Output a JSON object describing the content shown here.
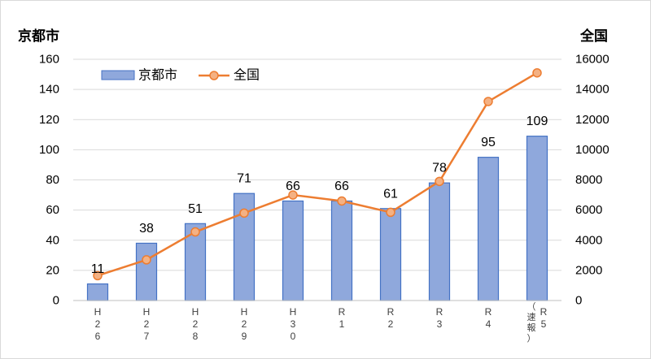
{
  "chart_data": {
    "type": "bar",
    "title": "",
    "y_left_label": "京都市",
    "y_right_label": "全国",
    "ylim_left": [
      0,
      160
    ],
    "ylim_right": [
      0,
      16000
    ],
    "y_left_ticks": [
      "0",
      "20",
      "40",
      "60",
      "80",
      "100",
      "120",
      "140",
      "160"
    ],
    "y_right_ticks": [
      "0",
      "2000",
      "4000",
      "6000",
      "8000",
      "10000",
      "12000",
      "14000",
      "16000"
    ],
    "categories": [
      {
        "main": [
          "H",
          "2",
          "6"
        ],
        "side": []
      },
      {
        "main": [
          "H",
          "2",
          "7"
        ],
        "side": []
      },
      {
        "main": [
          "H",
          "2",
          "8"
        ],
        "side": []
      },
      {
        "main": [
          "H",
          "2",
          "9"
        ],
        "side": []
      },
      {
        "main": [
          "H",
          "3",
          "0"
        ],
        "side": []
      },
      {
        "main": [
          "R",
          "1"
        ],
        "side": []
      },
      {
        "main": [
          "R",
          "2"
        ],
        "side": []
      },
      {
        "main": [
          "R",
          "3"
        ],
        "side": []
      },
      {
        "main": [
          "R",
          "4"
        ],
        "side": []
      },
      {
        "main": [
          "R",
          "5"
        ],
        "side": [
          "（",
          "速",
          "報",
          "）"
        ]
      }
    ],
    "series": [
      {
        "name": "京都市",
        "type": "bar",
        "axis": "left",
        "values": [
          11,
          38,
          51,
          71,
          66,
          66,
          61,
          78,
          95,
          109
        ],
        "labels": [
          "11",
          "38",
          "51",
          "71",
          "66",
          "66",
          "61",
          "78",
          "95",
          "109"
        ],
        "color": "#8fa8dc",
        "border": "#4472c4"
      },
      {
        "name": "全国",
        "type": "line",
        "axis": "right",
        "values": [
          1650,
          2700,
          4550,
          5800,
          7000,
          6600,
          5850,
          7900,
          13200,
          15100
        ],
        "color": "#ed7d31",
        "marker": "#f4b183"
      }
    ],
    "legend": "top-left",
    "grid": true
  }
}
